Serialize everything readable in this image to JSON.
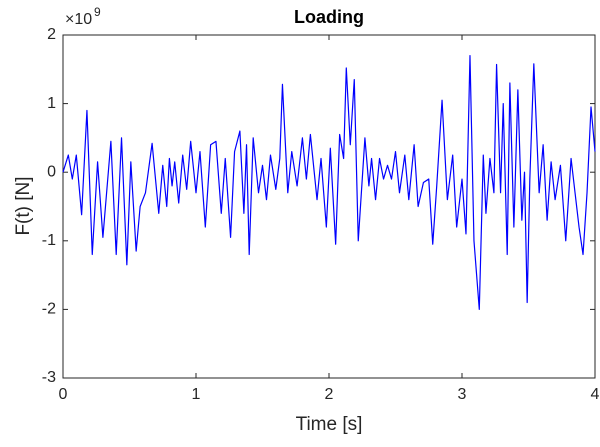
{
  "chart_data": {
    "type": "line",
    "title": "Loading",
    "x_label": "Time [s]",
    "y_label": "F(t) [N]",
    "y_multiplier": {
      "base": "×10",
      "power": "9"
    },
    "xlim": [
      0,
      4
    ],
    "xticks": [
      0,
      1,
      2,
      3,
      4
    ],
    "ylim": [
      -3,
      2
    ],
    "yticks": [
      -3,
      -2,
      -1,
      0,
      1,
      2
    ],
    "series": [
      {
        "color": "#0000ff",
        "x": [
          0,
          0.04,
          0.07,
          0.1,
          0.14,
          0.18,
          0.22,
          0.26,
          0.3,
          0.36,
          0.4,
          0.44,
          0.48,
          0.51,
          0.55,
          0.58,
          0.62,
          0.67,
          0.72,
          0.75,
          0.78,
          0.8,
          0.82,
          0.84,
          0.87,
          0.9,
          0.93,
          0.96,
          1.0,
          1.03,
          1.07,
          1.11,
          1.15,
          1.19,
          1.22,
          1.26,
          1.29,
          1.33,
          1.36,
          1.38,
          1.4,
          1.43,
          1.47,
          1.5,
          1.53,
          1.56,
          1.6,
          1.63,
          1.65,
          1.69,
          1.72,
          1.76,
          1.8,
          1.83,
          1.86,
          1.91,
          1.94,
          1.98,
          2.01,
          2.05,
          2.08,
          2.11,
          2.13,
          2.16,
          2.19,
          2.22,
          2.27,
          2.3,
          2.32,
          2.35,
          2.38,
          2.41,
          2.44,
          2.47,
          2.5,
          2.53,
          2.57,
          2.6,
          2.64,
          2.67,
          2.71,
          2.75,
          2.78,
          2.81,
          2.85,
          2.89,
          2.93,
          2.96,
          3.0,
          3.03,
          3.06,
          3.09,
          3.13,
          3.16,
          3.18,
          3.21,
          3.24,
          3.26,
          3.29,
          3.31,
          3.34,
          3.36,
          3.39,
          3.42,
          3.45,
          3.47,
          3.49,
          3.51,
          3.54,
          3.58,
          3.61,
          3.64,
          3.67,
          3.7,
          3.74,
          3.78,
          3.82,
          3.85,
          3.88,
          3.91,
          3.94,
          3.97,
          4.0
        ],
        "values": [
          0,
          0.25,
          -0.1,
          0.25,
          -0.62,
          0.9,
          -1.2,
          0.15,
          -0.95,
          0.45,
          -1.2,
          0.5,
          -1.35,
          0.15,
          -1.15,
          -0.5,
          -0.3,
          0.42,
          -0.6,
          0.1,
          -0.5,
          0.2,
          -0.2,
          0.15,
          -0.45,
          0.25,
          -0.25,
          0.45,
          -0.3,
          0.3,
          -0.8,
          0.4,
          0.45,
          -0.6,
          0.2,
          -0.95,
          0.3,
          0.6,
          -0.6,
          0.4,
          -1.2,
          0.5,
          -0.3,
          0.1,
          -0.4,
          0.25,
          -0.25,
          0.2,
          1.28,
          -0.3,
          0.3,
          -0.2,
          0.5,
          -0.1,
          0.55,
          -0.4,
          0.2,
          -0.8,
          0.35,
          -1.05,
          0.55,
          0.2,
          1.52,
          0.4,
          1.35,
          -1.0,
          0.5,
          -0.2,
          0.2,
          -0.4,
          0.2,
          -0.1,
          0.1,
          -0.1,
          0.3,
          -0.3,
          0.25,
          -0.4,
          0.4,
          -0.5,
          -0.15,
          -0.1,
          -1.05,
          -0.2,
          1.05,
          -0.4,
          0.25,
          -0.8,
          -0.1,
          -0.9,
          1.7,
          -1.0,
          -2.0,
          0.25,
          -0.6,
          0.2,
          -0.3,
          1.57,
          -0.3,
          1.0,
          -1.2,
          1.3,
          -0.8,
          1.2,
          -0.7,
          0.0,
          -1.9,
          -0.1,
          1.58,
          -0.3,
          0.4,
          -0.7,
          0.15,
          -0.4,
          0.1,
          -1.0,
          0.2,
          -0.3,
          -0.8,
          -1.2,
          -0.3,
          0.95,
          0.3
        ]
      }
    ]
  }
}
